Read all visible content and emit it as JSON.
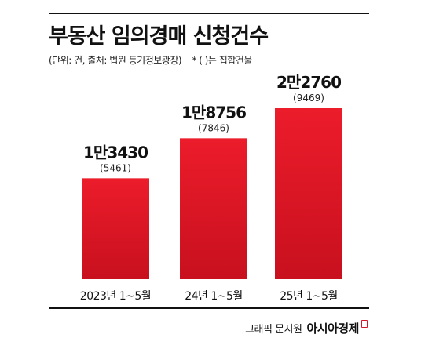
{
  "title": "부동산 임의경매 신청건수",
  "subtitle": "(단위: 건, 출처: 법원 등기정보광장)",
  "note": "* ( )는 집합건물",
  "credit": {
    "label": "그래픽 문지원",
    "brand": "아시아경제"
  },
  "colors": {
    "bar_top": "#ec1c2b",
    "bar_bottom": "#c8101e",
    "brand_mark": "#d6162a"
  },
  "chart_data": {
    "type": "bar",
    "categories": [
      "2023년 1~5월",
      "24년 1~5월",
      "25년 1~5월"
    ],
    "series": [
      {
        "values": [
          13430,
          18756,
          22760
        ]
      },
      {
        "values": [
          5461,
          7846,
          9469
        ]
      }
    ],
    "data_labels": [
      "1만3430",
      "1만8756",
      "2만2760"
    ],
    "secondary_labels": [
      "(5461)",
      "(7846)",
      "(9469)"
    ],
    "ylim": [
      0,
      22760
    ],
    "grid": false,
    "legend": "none"
  }
}
